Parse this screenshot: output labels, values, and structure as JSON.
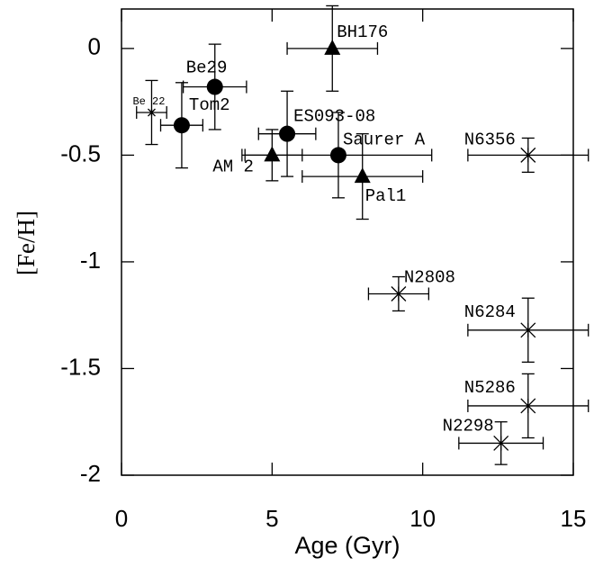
{
  "chart_data": {
    "type": "scatter",
    "x_label": "Age (Gyr)",
    "y_label": "[Fe/H]",
    "xlim": [
      0,
      15
    ],
    "ylim": [
      -2,
      0.185
    ],
    "xticks": [
      0,
      5,
      10,
      15
    ],
    "yticks": [
      0,
      -0.5,
      -1,
      -1.5,
      -2
    ],
    "color": "#000000",
    "points": [
      {
        "label": "Be 22",
        "marker": "small-cross",
        "x": 1.0,
        "y": -0.3,
        "xerr": 0.5,
        "yerr": 0.15
      },
      {
        "label": "Tom2",
        "marker": "circle",
        "x": 2.0,
        "y": -0.36,
        "xerr": 0.7,
        "yerr": 0.2
      },
      {
        "label": "Be29",
        "marker": "circle",
        "x": 3.1,
        "y": -0.18,
        "xerr": 1.05,
        "yerr": 0.2
      },
      {
        "label": "BH176",
        "marker": "triangle",
        "x": 7.0,
        "y": 0,
        "xerr": 1.5,
        "yerr": 0.2
      },
      {
        "label": "ES093-08",
        "marker": "circle",
        "x": 5.5,
        "y": -0.4,
        "xerr": 0.95,
        "yerr": 0.2
      },
      {
        "label": "Saurer A",
        "marker": "circle",
        "x": 7.2,
        "y": -0.5,
        "xerr": 3.1,
        "yerr": 0.2
      },
      {
        "label": "AM 2",
        "marker": "triangle",
        "x": 5.0,
        "y": -0.5,
        "xerr": 1.0,
        "yerr": 0.12
      },
      {
        "label": "Pal1",
        "marker": "triangle",
        "x": 8.0,
        "y": -0.6,
        "xerr": 2.0,
        "yerr": 0.2
      },
      {
        "label": "N6356",
        "marker": "cross",
        "x": 13.5,
        "y": -0.5,
        "xerr": 2.0,
        "yerr": 0.08
      },
      {
        "label": "N2808",
        "marker": "cross",
        "x": 9.2,
        "y": -1.15,
        "xerr": 1.0,
        "yerr": 0.08
      },
      {
        "label": "N6284",
        "marker": "cross",
        "x": 13.5,
        "y": -1.32,
        "xerr": 2.0,
        "yerr": 0.15
      },
      {
        "label": "N5286",
        "marker": "cross",
        "x": 13.5,
        "y": -1.675,
        "xerr": 2.0,
        "yerr": 0.15
      },
      {
        "label": "N2298",
        "marker": "cross",
        "x": 12.6,
        "y": -1.85,
        "xerr": 1.4,
        "yerr": 0.1
      }
    ]
  }
}
